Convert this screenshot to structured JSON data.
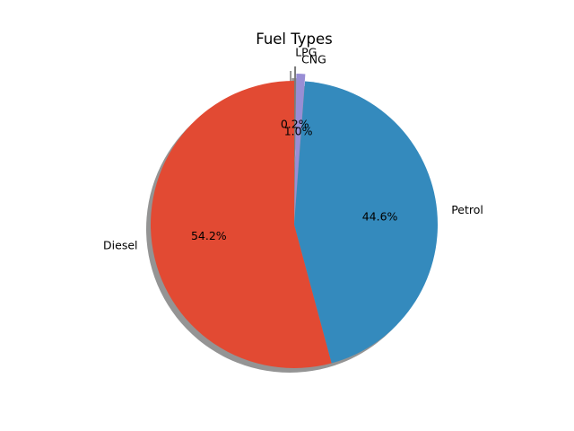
{
  "chart_data": {
    "type": "pie",
    "title": "Fuel Types",
    "start_angle_deg": 90,
    "direction": "counterclockwise",
    "shadow": true,
    "slices": [
      {
        "label": "Diesel",
        "value": 54.2,
        "pct_label": "54.2%",
        "color": "#E24A33",
        "explode": 0
      },
      {
        "label": "Petrol",
        "value": 44.6,
        "pct_label": "44.6%",
        "color": "#348ABD",
        "explode": 0
      },
      {
        "label": "CNG",
        "value": 1.0,
        "pct_label": "1.0%",
        "color": "#988ED5",
        "explode": 0.05
      },
      {
        "label": "LPG",
        "value": 0.2,
        "pct_label": "0.2%",
        "color": "#777777",
        "explode": 0.1
      }
    ]
  }
}
